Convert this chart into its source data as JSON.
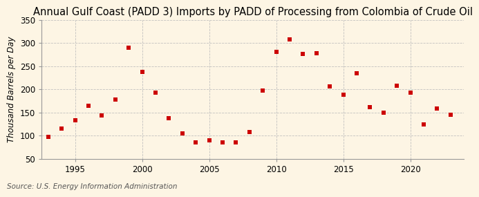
{
  "title": "Annual Gulf Coast (PADD 3) Imports by PADD of Processing from Colombia of Crude Oil",
  "ylabel": "Thousand Barrels per Day",
  "source": "Source: U.S. Energy Information Administration",
  "years": [
    1993,
    1994,
    1995,
    1996,
    1997,
    1998,
    1999,
    2000,
    2001,
    2002,
    2003,
    2004,
    2005,
    2006,
    2007,
    2008,
    2009,
    2010,
    2011,
    2012,
    2013,
    2014,
    2015,
    2016,
    2017,
    2018,
    2019,
    2020,
    2021,
    2022,
    2023
  ],
  "values": [
    97,
    115,
    133,
    165,
    143,
    177,
    290,
    238,
    193,
    138,
    104,
    85,
    90,
    85,
    85,
    107,
    197,
    281,
    308,
    277,
    278,
    206,
    188,
    234,
    161,
    149,
    207,
    193,
    124,
    159,
    145
  ],
  "marker_color": "#cc0000",
  "marker_size": 5,
  "background_color": "#fdf5e4",
  "grid_color": "#bbbbbb",
  "ylim": [
    50,
    350
  ],
  "yticks": [
    50,
    100,
    150,
    200,
    250,
    300,
    350
  ],
  "xlim": [
    1992.5,
    2024
  ],
  "xticks": [
    1995,
    2000,
    2005,
    2010,
    2015,
    2020
  ],
  "title_fontsize": 10.5,
  "label_fontsize": 8.5,
  "tick_fontsize": 8.5,
  "source_fontsize": 7.5
}
